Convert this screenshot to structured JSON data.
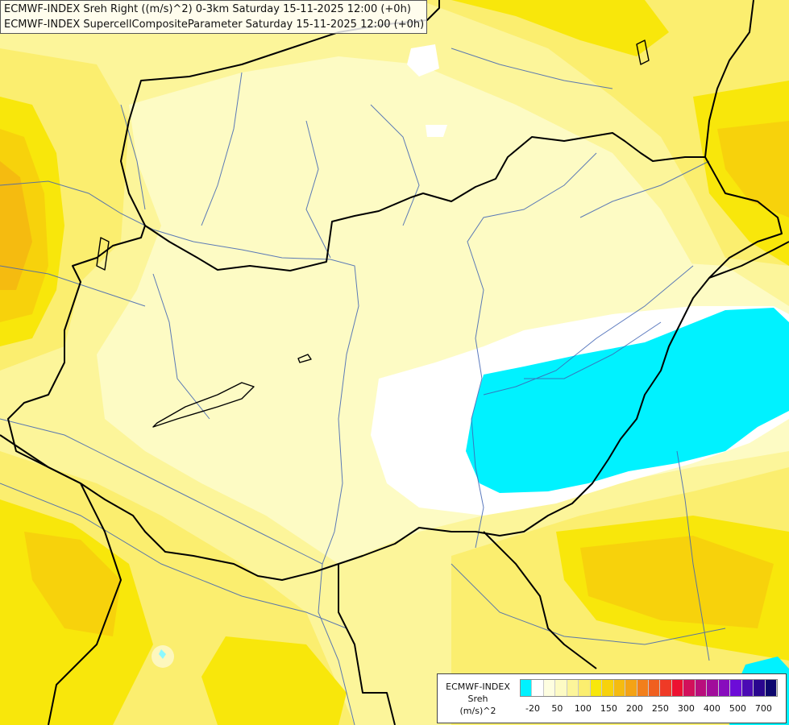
{
  "header": {
    "line1": "ECMWF-INDEX Sreh Right ((m/s)^2) 0-3km Saturday 15-11-2025 12:00 (+0h)",
    "line2": "ECMWF-INDEX SupercellCompositeParameter Saturday 15-11-2025 12:00 (+0h)"
  },
  "legend": {
    "label_lines": [
      "ECMWF-INDEX",
      "Sreh",
      "(m/s)^2"
    ],
    "colors": [
      "#00f2ff",
      "#ffffff",
      "#fefee0",
      "#fdfbc4",
      "#fcf59a",
      "#fbee6f",
      "#f8e70b",
      "#f7d20c",
      "#f5bb10",
      "#f4a315",
      "#f27f1b",
      "#f06020",
      "#ef3a26",
      "#ed1131",
      "#d2105b",
      "#b90e7c",
      "#a10d9b",
      "#880cbd",
      "#6c0cd8",
      "#4b0ab4",
      "#2a068f",
      "#0c066e"
    ],
    "ticks": [
      {
        "label": "-20",
        "pos": 0.05
      },
      {
        "label": "50",
        "pos": 0.145
      },
      {
        "label": "100",
        "pos": 0.245
      },
      {
        "label": "150",
        "pos": 0.345
      },
      {
        "label": "200",
        "pos": 0.445
      },
      {
        "label": "250",
        "pos": 0.545
      },
      {
        "label": "300",
        "pos": 0.645
      },
      {
        "label": "400",
        "pos": 0.745
      },
      {
        "label": "500",
        "pos": 0.845
      },
      {
        "label": "700",
        "pos": 0.945
      }
    ]
  },
  "map": {
    "fill_colors": {
      "pale": "#fdfbc4",
      "light": "#fcf59a",
      "yellow": "#fbee6f",
      "gold": "#f8e70b",
      "orange": "#f7d20c",
      "dark_orange": "#f5bb10",
      "white": "#ffffff",
      "cyan": "#00f2ff"
    },
    "border_color": "#000000",
    "river_color": "#3f63b3"
  }
}
